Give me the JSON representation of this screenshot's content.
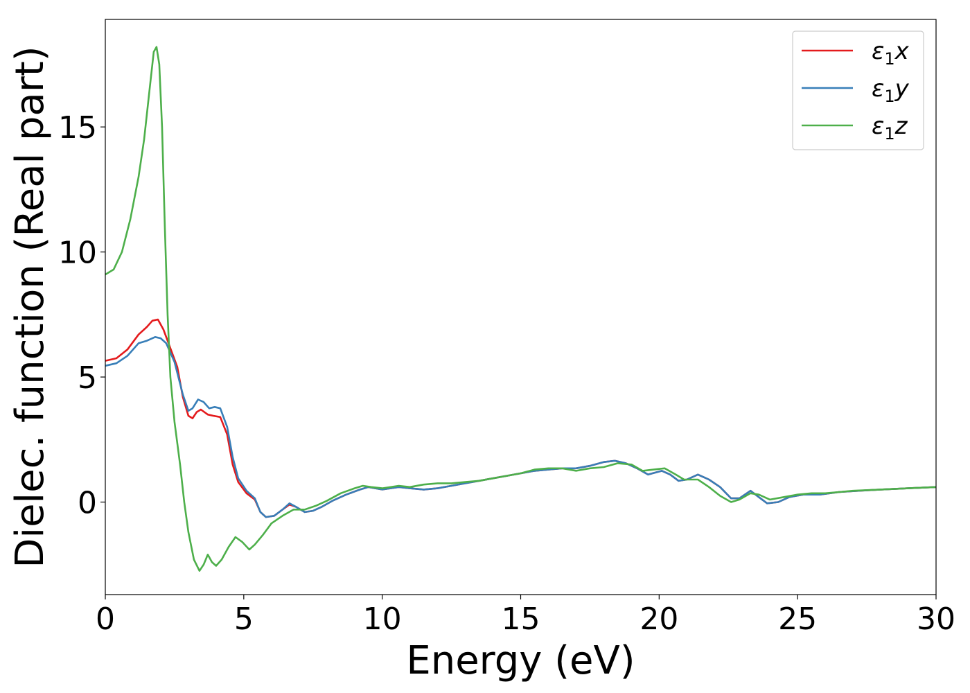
{
  "chart_data": {
    "type": "line",
    "title": "",
    "xlabel": "Energy (eV)",
    "ylabel": "Dielec. function (Real part)",
    "xlim": [
      0,
      30
    ],
    "ylim": [
      -3.7,
      19.3
    ],
    "xticks": [
      0,
      5,
      10,
      15,
      20,
      25,
      30
    ],
    "xtick_labels": [
      "0",
      "5",
      "10",
      "15",
      "20",
      "25",
      "30"
    ],
    "yticks": [
      0,
      5,
      10,
      15
    ],
    "ytick_labels": [
      "0",
      "5",
      "10",
      "15"
    ],
    "grid": false,
    "legend_position": "top-right",
    "series": [
      {
        "name": "ε1x",
        "symbol": "ε",
        "subscript": "1",
        "suffix": "x",
        "color": "#e41a1c",
        "points": [
          [
            0,
            5.65
          ],
          [
            0.4,
            5.75
          ],
          [
            0.8,
            6.1
          ],
          [
            1.2,
            6.7
          ],
          [
            1.5,
            7.0
          ],
          [
            1.7,
            7.25
          ],
          [
            1.9,
            7.3
          ],
          [
            2.1,
            6.9
          ],
          [
            2.3,
            6.3
          ],
          [
            2.6,
            5.4
          ],
          [
            2.8,
            4.2
          ],
          [
            3.0,
            3.45
          ],
          [
            3.15,
            3.35
          ],
          [
            3.3,
            3.6
          ],
          [
            3.45,
            3.7
          ],
          [
            3.7,
            3.5
          ],
          [
            3.9,
            3.45
          ],
          [
            4.15,
            3.4
          ],
          [
            4.4,
            2.7
          ],
          [
            4.6,
            1.5
          ],
          [
            4.8,
            0.8
          ],
          [
            5.1,
            0.35
          ],
          [
            5.4,
            0.1
          ],
          [
            5.6,
            -0.4
          ],
          [
            5.8,
            -0.6
          ],
          [
            6.1,
            -0.55
          ],
          [
            6.4,
            -0.3
          ],
          [
            6.65,
            -0.1
          ],
          [
            6.9,
            -0.2
          ],
          [
            7.2,
            -0.4
          ],
          [
            7.5,
            -0.35
          ],
          [
            7.8,
            -0.2
          ],
          [
            8.2,
            0.05
          ],
          [
            8.7,
            0.3
          ],
          [
            9.2,
            0.5
          ],
          [
            9.5,
            0.6
          ],
          [
            10.0,
            0.5
          ],
          [
            10.6,
            0.6
          ],
          [
            11.0,
            0.55
          ],
          [
            11.5,
            0.5
          ],
          [
            12.0,
            0.55
          ],
          [
            12.5,
            0.65
          ],
          [
            13.0,
            0.75
          ],
          [
            13.5,
            0.85
          ],
          [
            14.0,
            0.95
          ],
          [
            14.5,
            1.05
          ],
          [
            15.0,
            1.15
          ],
          [
            15.5,
            1.25
          ],
          [
            16.0,
            1.3
          ],
          [
            16.5,
            1.35
          ],
          [
            17.0,
            1.35
          ],
          [
            17.5,
            1.45
          ],
          [
            18.0,
            1.6
          ],
          [
            18.4,
            1.65
          ],
          [
            18.8,
            1.55
          ],
          [
            19.2,
            1.35
          ],
          [
            19.6,
            1.1
          ],
          [
            20.1,
            1.25
          ],
          [
            20.4,
            1.1
          ],
          [
            20.7,
            0.85
          ],
          [
            21.0,
            0.9
          ],
          [
            21.4,
            1.1
          ],
          [
            21.8,
            0.9
          ],
          [
            22.2,
            0.6
          ],
          [
            22.6,
            0.15
          ],
          [
            22.9,
            0.15
          ],
          [
            23.3,
            0.45
          ],
          [
            23.6,
            0.2
          ],
          [
            23.9,
            -0.05
          ],
          [
            24.3,
            0.0
          ],
          [
            24.7,
            0.2
          ],
          [
            25.2,
            0.3
          ],
          [
            25.8,
            0.3
          ],
          [
            26.5,
            0.4
          ],
          [
            27.2,
            0.45
          ],
          [
            28.0,
            0.5
          ],
          [
            29.0,
            0.55
          ],
          [
            30.0,
            0.6
          ]
        ]
      },
      {
        "name": "ε1y",
        "symbol": "ε",
        "subscript": "1",
        "suffix": "y",
        "color": "#377eb8",
        "points": [
          [
            0,
            5.45
          ],
          [
            0.4,
            5.55
          ],
          [
            0.8,
            5.85
          ],
          [
            1.2,
            6.35
          ],
          [
            1.5,
            6.45
          ],
          [
            1.8,
            6.6
          ],
          [
            2.0,
            6.55
          ],
          [
            2.2,
            6.35
          ],
          [
            2.5,
            5.6
          ],
          [
            2.8,
            4.3
          ],
          [
            3.0,
            3.65
          ],
          [
            3.15,
            3.75
          ],
          [
            3.35,
            4.1
          ],
          [
            3.55,
            4.0
          ],
          [
            3.75,
            3.75
          ],
          [
            3.95,
            3.8
          ],
          [
            4.15,
            3.75
          ],
          [
            4.4,
            3.0
          ],
          [
            4.6,
            1.8
          ],
          [
            4.8,
            0.95
          ],
          [
            5.1,
            0.45
          ],
          [
            5.4,
            0.15
          ],
          [
            5.6,
            -0.4
          ],
          [
            5.8,
            -0.6
          ],
          [
            6.1,
            -0.55
          ],
          [
            6.4,
            -0.3
          ],
          [
            6.65,
            -0.05
          ],
          [
            6.9,
            -0.2
          ],
          [
            7.2,
            -0.4
          ],
          [
            7.5,
            -0.35
          ],
          [
            7.8,
            -0.2
          ],
          [
            8.2,
            0.05
          ],
          [
            8.7,
            0.3
          ],
          [
            9.2,
            0.5
          ],
          [
            9.5,
            0.6
          ],
          [
            10.0,
            0.5
          ],
          [
            10.6,
            0.6
          ],
          [
            11.0,
            0.55
          ],
          [
            11.5,
            0.5
          ],
          [
            12.0,
            0.55
          ],
          [
            12.5,
            0.65
          ],
          [
            13.0,
            0.75
          ],
          [
            13.5,
            0.85
          ],
          [
            14.0,
            0.95
          ],
          [
            14.5,
            1.05
          ],
          [
            15.0,
            1.15
          ],
          [
            15.5,
            1.25
          ],
          [
            16.0,
            1.3
          ],
          [
            16.5,
            1.35
          ],
          [
            17.0,
            1.35
          ],
          [
            17.5,
            1.45
          ],
          [
            18.0,
            1.6
          ],
          [
            18.4,
            1.65
          ],
          [
            18.8,
            1.55
          ],
          [
            19.2,
            1.35
          ],
          [
            19.6,
            1.1
          ],
          [
            20.1,
            1.25
          ],
          [
            20.4,
            1.1
          ],
          [
            20.7,
            0.85
          ],
          [
            21.0,
            0.9
          ],
          [
            21.4,
            1.1
          ],
          [
            21.8,
            0.9
          ],
          [
            22.2,
            0.6
          ],
          [
            22.6,
            0.15
          ],
          [
            22.9,
            0.15
          ],
          [
            23.3,
            0.45
          ],
          [
            23.6,
            0.2
          ],
          [
            23.9,
            -0.05
          ],
          [
            24.3,
            0.0
          ],
          [
            24.7,
            0.2
          ],
          [
            25.2,
            0.3
          ],
          [
            25.8,
            0.3
          ],
          [
            26.5,
            0.4
          ],
          [
            27.2,
            0.45
          ],
          [
            28.0,
            0.5
          ],
          [
            29.0,
            0.55
          ],
          [
            30.0,
            0.6
          ]
        ]
      },
      {
        "name": "ε1z",
        "symbol": "ε",
        "subscript": "1",
        "suffix": "z",
        "color": "#4daf4a",
        "points": [
          [
            0,
            9.1
          ],
          [
            0.3,
            9.3
          ],
          [
            0.6,
            10.0
          ],
          [
            0.9,
            11.3
          ],
          [
            1.2,
            13.0
          ],
          [
            1.4,
            14.5
          ],
          [
            1.6,
            16.5
          ],
          [
            1.75,
            18.0
          ],
          [
            1.85,
            18.2
          ],
          [
            1.95,
            17.5
          ],
          [
            2.05,
            15.0
          ],
          [
            2.15,
            11.0
          ],
          [
            2.25,
            7.5
          ],
          [
            2.35,
            5.0
          ],
          [
            2.5,
            3.2
          ],
          [
            2.7,
            1.5
          ],
          [
            2.85,
            0.0
          ],
          [
            3.0,
            -1.2
          ],
          [
            3.2,
            -2.3
          ],
          [
            3.4,
            -2.75
          ],
          [
            3.55,
            -2.5
          ],
          [
            3.7,
            -2.1
          ],
          [
            3.85,
            -2.4
          ],
          [
            4.0,
            -2.55
          ],
          [
            4.2,
            -2.3
          ],
          [
            4.45,
            -1.8
          ],
          [
            4.7,
            -1.4
          ],
          [
            4.95,
            -1.6
          ],
          [
            5.2,
            -1.9
          ],
          [
            5.4,
            -1.7
          ],
          [
            5.7,
            -1.3
          ],
          [
            6.0,
            -0.85
          ],
          [
            6.4,
            -0.55
          ],
          [
            6.8,
            -0.3
          ],
          [
            7.2,
            -0.3
          ],
          [
            7.6,
            -0.15
          ],
          [
            8.0,
            0.05
          ],
          [
            8.5,
            0.35
          ],
          [
            9.0,
            0.55
          ],
          [
            9.3,
            0.65
          ],
          [
            9.6,
            0.6
          ],
          [
            10.0,
            0.55
          ],
          [
            10.6,
            0.65
          ],
          [
            11.0,
            0.6
          ],
          [
            11.5,
            0.7
          ],
          [
            12.0,
            0.75
          ],
          [
            12.5,
            0.75
          ],
          [
            13.0,
            0.8
          ],
          [
            13.5,
            0.85
          ],
          [
            14.0,
            0.95
          ],
          [
            14.5,
            1.05
          ],
          [
            15.0,
            1.15
          ],
          [
            15.5,
            1.3
          ],
          [
            16.0,
            1.35
          ],
          [
            16.5,
            1.35
          ],
          [
            17.0,
            1.25
          ],
          [
            17.5,
            1.35
          ],
          [
            18.0,
            1.4
          ],
          [
            18.5,
            1.55
          ],
          [
            19.0,
            1.5
          ],
          [
            19.4,
            1.25
          ],
          [
            19.8,
            1.3
          ],
          [
            20.2,
            1.35
          ],
          [
            20.6,
            1.1
          ],
          [
            20.9,
            0.9
          ],
          [
            21.4,
            0.9
          ],
          [
            21.8,
            0.6
          ],
          [
            22.2,
            0.25
          ],
          [
            22.6,
            0.0
          ],
          [
            22.9,
            0.1
          ],
          [
            23.3,
            0.35
          ],
          [
            23.6,
            0.3
          ],
          [
            24.0,
            0.1
          ],
          [
            24.5,
            0.2
          ],
          [
            25.0,
            0.3
          ],
          [
            25.5,
            0.35
          ],
          [
            26.0,
            0.35
          ],
          [
            26.5,
            0.4
          ],
          [
            27.0,
            0.45
          ],
          [
            28.0,
            0.5
          ],
          [
            29.0,
            0.55
          ],
          [
            30.0,
            0.6
          ]
        ]
      }
    ]
  }
}
